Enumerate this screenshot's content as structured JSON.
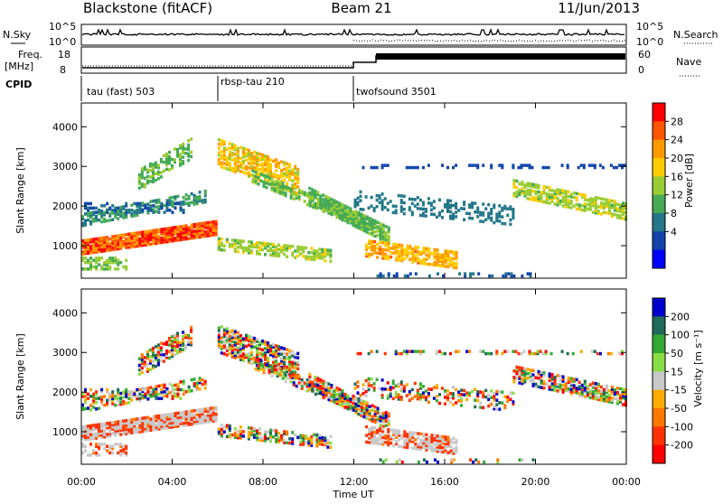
{
  "header": {
    "station": "Blackstone (fitACF)",
    "beam": "Beam 21",
    "date": "11/Jun/2013"
  },
  "top_panels": {
    "nsky_label": "N.Sky",
    "nsearch_label": "N.Search",
    "noise_ticks": [
      "10^5",
      "10^0"
    ],
    "freq_label_1": "Freq.",
    "freq_label_2": "[MHz]",
    "freq_ticks": [
      "18",
      "8"
    ],
    "nave_label": "Nave",
    "nave_ticks": [
      "60",
      "0"
    ],
    "cpid_label": "CPID",
    "cpid_segments": [
      {
        "label": "tau (fast) 503",
        "start_hour": 0
      },
      {
        "label": "rbsp-tau 210",
        "start_hour": 6
      },
      {
        "label": "twofsound 3501",
        "start_hour": 12
      }
    ]
  },
  "chart_data": [
    {
      "type": "heatmap",
      "parameter": "power",
      "ylabel": "Slant Range [km]",
      "ylim": [
        180,
        4600
      ],
      "xlim_hours": [
        0,
        24
      ],
      "yticks": [
        "1000",
        "2000",
        "3000",
        "4000"
      ],
      "colorbar_label": "Power [dB]",
      "colorbar_ticks": [
        "28",
        "24",
        "20",
        "16",
        "12",
        "8",
        "4"
      ],
      "colorbar_colors": [
        "#ff0000",
        "#ff5500",
        "#ff9900",
        "#ffcc00",
        "#99cc33",
        "#44aa55",
        "#227788",
        "#1144aa",
        "#0000ff"
      ]
    },
    {
      "type": "heatmap",
      "parameter": "velocity",
      "ylabel": "Slant Range [km]",
      "ylim": [
        180,
        4600
      ],
      "xlim_hours": [
        0,
        24
      ],
      "yticks": [
        "1000",
        "2000",
        "3000",
        "4000"
      ],
      "colorbar_label": "Velocity [m s⁻¹]",
      "colorbar_ticks": [
        "200",
        "100",
        "50",
        "15",
        "-15",
        "-50",
        "-100",
        "-200"
      ],
      "colorbar_colors": [
        "#0000cc",
        "#1f6b5a",
        "#33aa33",
        "#88dd44",
        "#c8c8c8",
        "#ffaa00",
        "#ff7700",
        "#ff3300",
        "#ff0000"
      ],
      "xticks": [
        "00:00",
        "04:00",
        "08:00",
        "12:00",
        "16:00",
        "20:00",
        "00:00"
      ],
      "xlabel": "Time UT"
    }
  ]
}
